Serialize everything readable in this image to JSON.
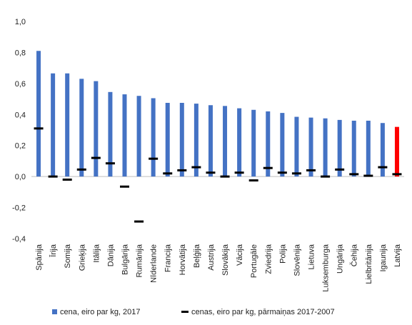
{
  "chart_data": {
    "type": "bar",
    "categories": [
      "Spānija",
      "Īrija",
      "Somija",
      "Grieķija",
      "Itālija",
      "Dānija",
      "Bulgārija",
      "Rumānija",
      "Nīderlande",
      "Francija",
      "Horvātija",
      "Beļģija",
      "Austrija",
      "Slovākija",
      "Vācija",
      "Portugāle",
      "Zviedrija",
      "Polija",
      "Slovēnija",
      "Lietuva",
      "Luksemburga",
      "Ungārija",
      "Čehija",
      "Lielbritānija",
      "Igaunija",
      "Latvija"
    ],
    "series": [
      {
        "name": "cena, eiro par kg, 2017",
        "kind": "bar",
        "color": "#4472C4",
        "values": [
          0.81,
          0.665,
          0.665,
          0.63,
          0.615,
          0.545,
          0.53,
          0.52,
          0.505,
          0.475,
          0.475,
          0.47,
          0.46,
          0.455,
          0.44,
          0.43,
          0.42,
          0.41,
          0.385,
          0.38,
          0.375,
          0.365,
          0.36,
          0.36,
          0.345,
          0.32
        ]
      },
      {
        "name": "cenas, eiro par kg, pārmaiņas 2017-2007",
        "kind": "marker",
        "color": "#000000",
        "values": [
          0.31,
          0.0,
          -0.02,
          0.045,
          0.12,
          0.085,
          -0.065,
          -0.29,
          0.115,
          0.02,
          0.04,
          0.06,
          0.025,
          0.0,
          0.025,
          -0.025,
          0.055,
          0.025,
          0.02,
          0.04,
          0.0,
          0.045,
          0.015,
          0.005,
          0.06,
          0.015
        ]
      }
    ],
    "highlight": {
      "category": "Latvija",
      "color": "#FF0000"
    },
    "ylim": [
      -0.4,
      1.0
    ],
    "yticks": [
      -0.4,
      -0.2,
      0.0,
      0.2,
      0.4,
      0.6,
      0.8,
      1.0
    ],
    "ytick_labels": [
      "-0,4",
      "-0,2",
      "0,0",
      "0,2",
      "0,4",
      "0,6",
      "0,8",
      "1,0"
    ],
    "grid": false,
    "legend": "bottom",
    "title": "",
    "xlabel": "",
    "ylabel": ""
  }
}
